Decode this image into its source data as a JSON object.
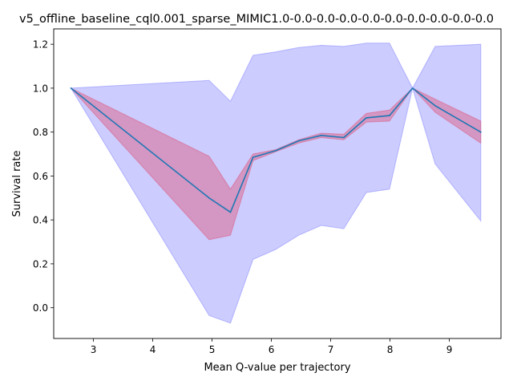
{
  "chart_data": {
    "type": "line",
    "title": "v5_offline_baseline_cql0.001_sparse_MIMIC1.0-0.0-0.0-0.0-0.0-0.0-0.0-0.0-0.0-0.0",
    "xlabel": "Mean Q-value per trajectory",
    "ylabel": "Survival rate",
    "xlim": [
      2.33,
      9.87
    ],
    "ylim": [
      -0.14,
      1.27
    ],
    "xticks": [
      3,
      4,
      5,
      6,
      7,
      8,
      9
    ],
    "yticks": [
      0.0,
      0.2,
      0.4,
      0.6,
      0.8,
      1.0,
      1.2
    ],
    "grid": false,
    "x": [
      2.62,
      4.95,
      5.31,
      5.69,
      6.07,
      6.46,
      6.84,
      7.22,
      7.6,
      7.99,
      8.38,
      8.76,
      9.53
    ],
    "series": [
      {
        "type": "line",
        "color": "#1f77b4",
        "values": [
          1.0,
          0.5,
          0.435,
          0.685,
          0.715,
          0.76,
          0.785,
          0.775,
          0.865,
          0.875,
          1.0,
          0.92,
          0.8
        ]
      },
      {
        "type": "band",
        "color": "#dd5577",
        "lower": [
          1.0,
          0.31,
          0.33,
          0.67,
          0.71,
          0.75,
          0.775,
          0.765,
          0.845,
          0.85,
          1.0,
          0.89,
          0.75
        ],
        "upper": [
          1.0,
          0.69,
          0.54,
          0.7,
          0.72,
          0.765,
          0.795,
          0.79,
          0.885,
          0.9,
          1.0,
          0.95,
          0.85
        ]
      },
      {
        "type": "band",
        "color": "#8080ff",
        "lower": [
          1.0,
          -0.035,
          -0.07,
          0.22,
          0.265,
          0.33,
          0.375,
          0.36,
          0.525,
          0.54,
          1.0,
          0.655,
          0.395
        ],
        "upper": [
          1.0,
          1.035,
          0.94,
          1.15,
          1.165,
          1.185,
          1.195,
          1.19,
          1.205,
          1.205,
          1.0,
          1.19,
          1.2
        ]
      }
    ]
  }
}
